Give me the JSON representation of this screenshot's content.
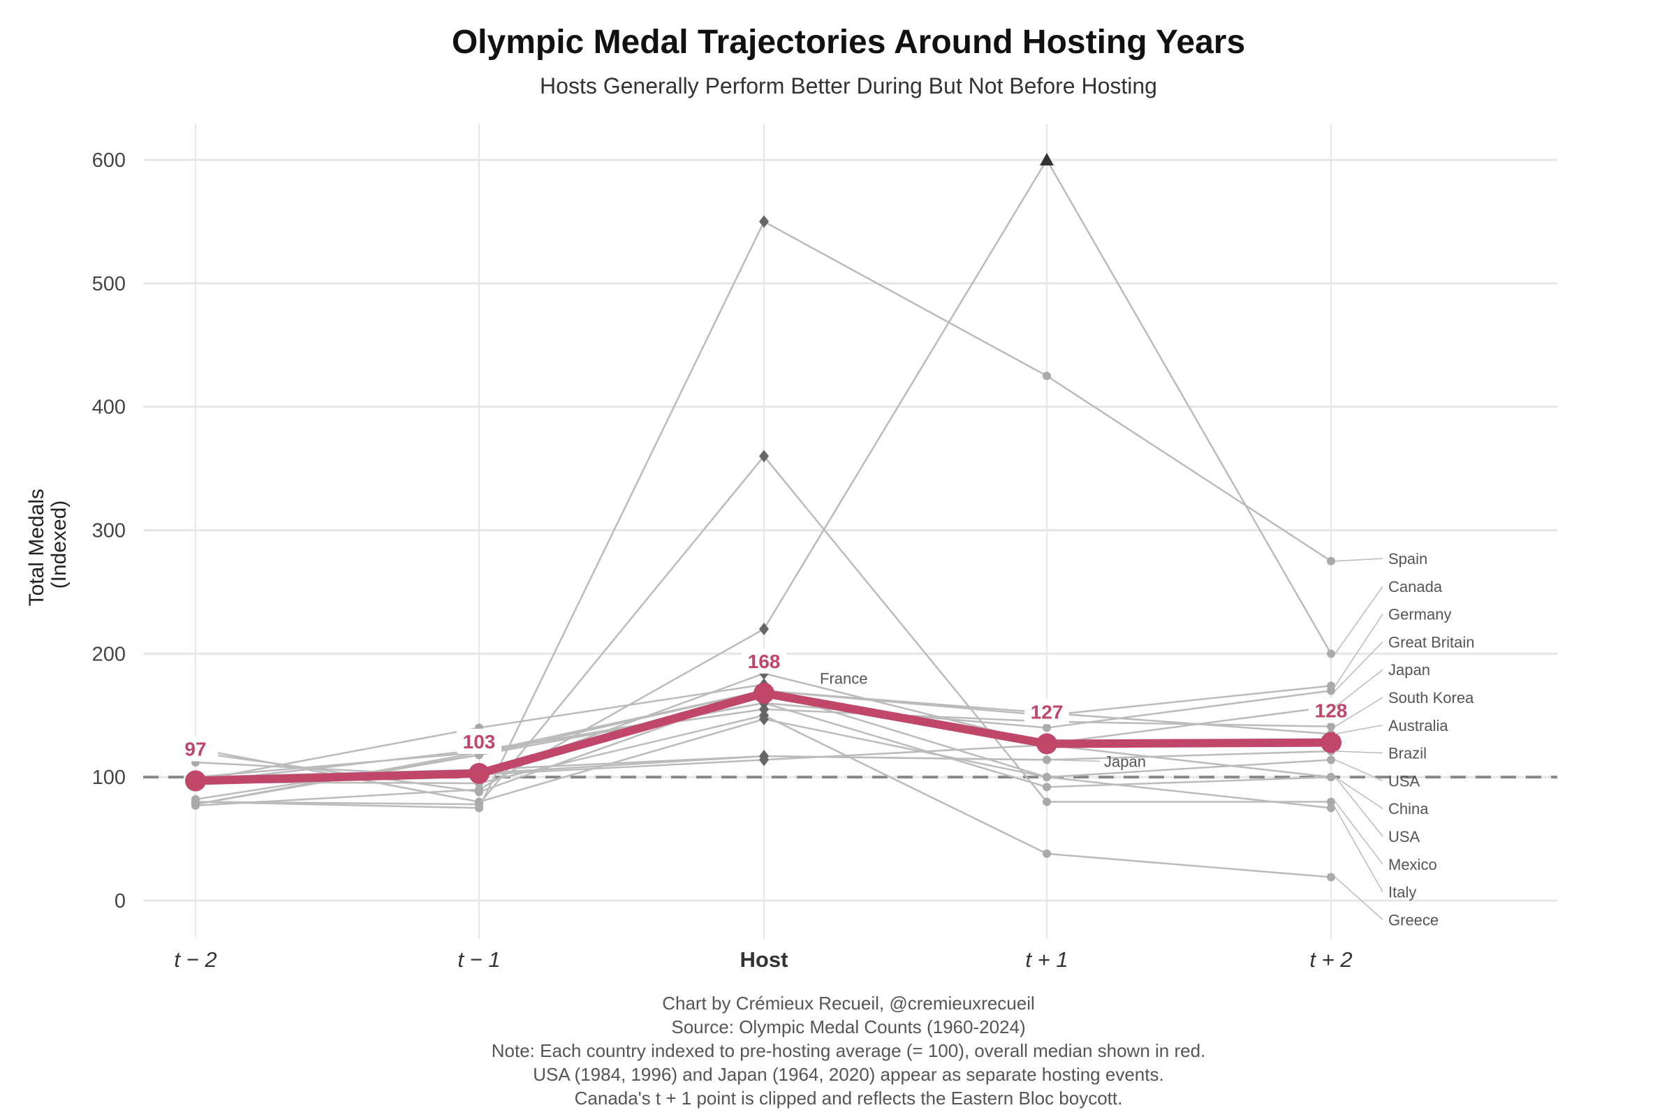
{
  "chart_data": {
    "type": "line",
    "title": "Olympic Medal Trajectories Around Hosting Years",
    "subtitle": "Hosts Generally Perform Better During But Not Before Hosting",
    "xlabel": "",
    "ylabel": "Total Medals\n(Indexed)",
    "ylabel_lines": [
      "Total Medals",
      "(Indexed)"
    ],
    "categories": [
      "t − 2",
      "t − 1",
      "Host",
      "t + 1",
      "t + 2"
    ],
    "ylim": [
      -30,
      630
    ],
    "yticks": [
      0,
      100,
      200,
      300,
      400,
      500,
      600
    ],
    "grid": true,
    "reference_line": 100,
    "median": {
      "name": "Median",
      "values": [
        97,
        103,
        168,
        127,
        128
      ],
      "color": "#c0466a"
    },
    "series": [
      {
        "name": "Spain",
        "values": [
          80,
          75,
          550,
          425,
          275
        ]
      },
      {
        "name": "Canada",
        "values": [
          77,
          90,
          220,
          600,
          200
        ],
        "clipped_index": 3
      },
      {
        "name": "Germany",
        "values": [
          82,
          118,
          170,
          150,
          174
        ]
      },
      {
        "name": "Great Britain",
        "values": [
          78,
          120,
          160,
          140,
          170
        ]
      },
      {
        "name": "Japan",
        "values": [
          112,
          100,
          184,
          127,
          157
        ]
      },
      {
        "name": "South Korea",
        "values": [
          96,
          122,
          155,
          145,
          141
        ]
      },
      {
        "name": "Australia",
        "values": [
          100,
          120,
          170,
          152,
          135
        ]
      },
      {
        "name": "Brazil",
        "values": [
          100,
          106,
          117,
          114,
          121
        ]
      },
      {
        "name": "USA",
        "values": [
          123,
          80,
          147,
          100,
          114
        ]
      },
      {
        "name": "China",
        "values": [
          78,
          118,
          160,
          92,
          100
        ]
      },
      {
        "name": "USA",
        "values": [
          100,
          102,
          114,
          126,
          100
        ]
      },
      {
        "name": "Mexico",
        "values": [
          80,
          78,
          360,
          80,
          80
        ]
      },
      {
        "name": "Italy",
        "values": [
          120,
          88,
          170,
          100,
          75
        ]
      },
      {
        "name": "Greece",
        "values": [
          96,
          95,
          150,
          38,
          19
        ]
      },
      {
        "name": "France",
        "values": [
          97,
          140,
          175,
          null,
          null
        ],
        "label_at": 2
      },
      {
        "name": "Japan",
        "values": [
          98,
          103,
          117,
          114,
          null
        ],
        "label_at": 3
      }
    ],
    "colors": {
      "series": "#bbbbbb",
      "host_marker": "#666666",
      "point": "#aaaaaa",
      "reference": "#888888",
      "grid": "#e6e6e6"
    }
  },
  "caption": [
    "Chart by Crémieux Recueil, @cremieuxrecueil",
    "Source: Olympic Medal Counts (1960-2024)",
    "Note: Each country indexed to pre-hosting average (= 100), overall median shown in red.",
    "USA (1984, 1996) and Japan (1964, 2020) appear as separate hosting events.",
    "Canada's t + 1 point is clipped and reflects the Eastern Bloc boycott."
  ]
}
